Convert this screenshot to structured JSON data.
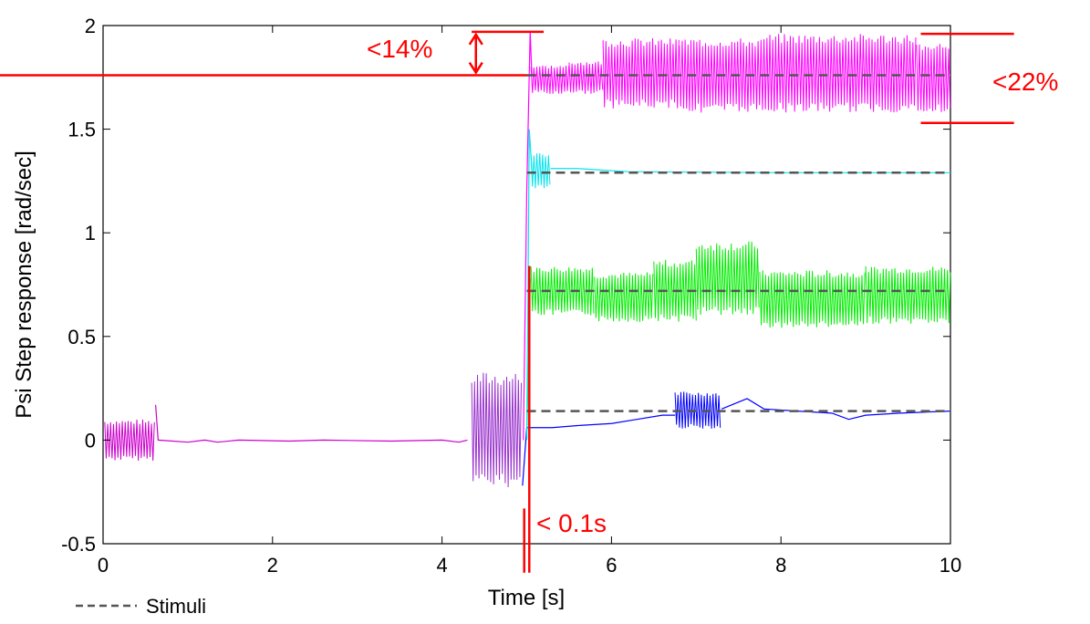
{
  "chart_data": {
    "type": "line",
    "title": "",
    "xlabel": "Time [s]",
    "ylabel": "Psi Step response [rad/sec]",
    "xlim": [
      0,
      10
    ],
    "ylim": [
      -0.5,
      2
    ],
    "xticks": [
      0,
      2,
      4,
      6,
      8,
      10
    ],
    "yticks": [
      -0.5,
      0,
      0.5,
      1,
      1.5,
      2
    ],
    "xtick_labels": [
      "0",
      "2",
      "4",
      "6",
      "8",
      "10"
    ],
    "ytick_labels": [
      "-0.5",
      "0",
      "0.5",
      "1",
      "1.5",
      "2"
    ],
    "grid": false,
    "legend": {
      "placement": "bottom-left",
      "label": "Stimuli",
      "style": "dashed"
    },
    "stimuli": [
      {
        "value": 1.76,
        "x_start": 5.0,
        "x_end": 10.0
      },
      {
        "value": 1.29,
        "x_start": 5.0,
        "x_end": 10.0
      },
      {
        "value": 0.72,
        "x_start": 5.0,
        "x_end": 10.0
      },
      {
        "value": 0.14,
        "x_start": 5.0,
        "x_end": 10.0
      }
    ],
    "series": [
      {
        "color": "#ff00ff",
        "setpoint": 1.76,
        "segments": [
          [
            5.05,
            5.5,
            0.07
          ],
          [
            5.5,
            5.9,
            0.08
          ],
          [
            5.9,
            6.8,
            0.17
          ],
          [
            6.8,
            7.8,
            0.18
          ],
          [
            7.8,
            9.6,
            0.19
          ],
          [
            9.6,
            10.0,
            0.17
          ]
        ]
      },
      {
        "color": "#00e5ee",
        "setpoint": 1.29,
        "segments": [
          [
            5.05,
            5.28,
            0.09
          ]
        ]
      },
      {
        "color": "#00ee00",
        "setpoint": 0.72,
        "segments": [
          [
            5.05,
            5.8,
            0.12
          ],
          [
            5.8,
            6.5,
            0.12
          ],
          [
            6.5,
            7.0,
            0.15
          ],
          [
            7.0,
            7.75,
            0.18
          ],
          [
            7.75,
            9.0,
            0.14
          ],
          [
            9.0,
            10.0,
            0.14
          ]
        ]
      },
      {
        "color": "#0000ff",
        "setpoint": 0.14,
        "segments": [
          [
            6.75,
            7.3,
            0.09
          ]
        ]
      },
      {
        "color": "#cc00cc",
        "setpoint": 0.0,
        "segments": [
          [
            0.02,
            0.62,
            0.1
          ],
          [
            4.35,
            4.95,
            0.28
          ]
        ]
      }
    ],
    "annotations": {
      "overshoot": {
        "text": "<14%",
        "level": 1.97,
        "ref": 1.76,
        "color": "#ff0000"
      },
      "band": {
        "text": "<22%",
        "high": 1.96,
        "low": 1.53,
        "color": "#ff0000"
      },
      "delay": {
        "text": "< 0.1s",
        "x1": 4.97,
        "x2": 5.03,
        "color": "#ff0000"
      }
    }
  }
}
